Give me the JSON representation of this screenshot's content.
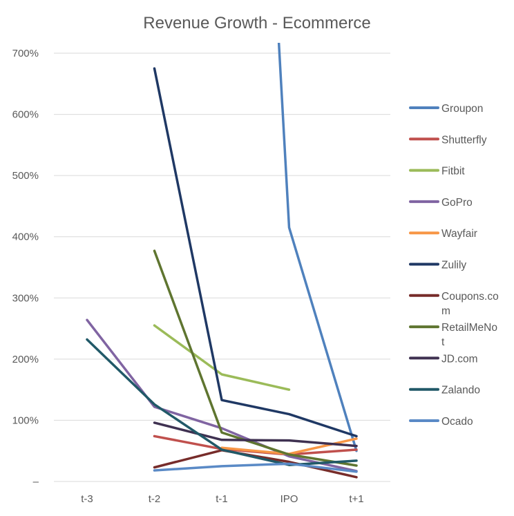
{
  "chart_data": {
    "type": "line",
    "title": "Revenue Growth - Ecommerce",
    "xlabel": "",
    "ylabel": "",
    "categories": [
      "t-3",
      "t-2",
      "t-1",
      "IPO",
      "t+1"
    ],
    "ylim": [
      0,
      700
    ],
    "y_ticks": [
      {
        "value": 0,
        "label": "–"
      },
      {
        "value": 100,
        "label": "100%"
      },
      {
        "value": 200,
        "label": "200%"
      },
      {
        "value": 300,
        "label": "300%"
      },
      {
        "value": 400,
        "label": "400%"
      },
      {
        "value": 500,
        "label": "500%"
      },
      {
        "value": 600,
        "label": "600%"
      },
      {
        "value": 700,
        "label": "700%"
      }
    ],
    "grid": true,
    "legend_position": "right",
    "series": [
      {
        "name": "Groupon",
        "legend_lines": [
          "Groupon"
        ],
        "color": "#4F81BD",
        "values": [
          null,
          null,
          null,
          415,
          50
        ],
        "pre_ipo_value": 740
      },
      {
        "name": "Shutterfly",
        "legend_lines": [
          "Shutterfly"
        ],
        "color": "#C0504D",
        "values": [
          null,
          74,
          53,
          44,
          52
        ]
      },
      {
        "name": "Fitbit",
        "legend_lines": [
          "Fitbit"
        ],
        "color": "#9BBB59",
        "values": [
          null,
          255,
          175,
          150,
          null
        ]
      },
      {
        "name": "GoPro",
        "legend_lines": [
          "GoPro"
        ],
        "color": "#8064A2",
        "values": [
          264,
          122,
          87,
          41,
          17
        ]
      },
      {
        "name": "Wayfair",
        "legend_lines": [
          "Wayfair"
        ],
        "color": "#F79646",
        "values": [
          null,
          null,
          55,
          45,
          70
        ]
      },
      {
        "name": "Zulily",
        "legend_lines": [
          "Zulily"
        ],
        "color": "#1F3864",
        "values": [
          null,
          675,
          133,
          110,
          74
        ]
      },
      {
        "name": "Coupons.com",
        "legend_lines": [
          "Coupons.co",
          "m"
        ],
        "color": "#772C2A",
        "values": [
          null,
          23,
          51,
          32,
          7
        ]
      },
      {
        "name": "RetailMeNot",
        "legend_lines": [
          "RetailMeNo",
          "t"
        ],
        "color": "#5F7530",
        "values": [
          null,
          377,
          80,
          44,
          26
        ]
      },
      {
        "name": "JD.com",
        "legend_lines": [
          "JD.com"
        ],
        "color": "#3F3151",
        "values": [
          null,
          96,
          68,
          67,
          58
        ]
      },
      {
        "name": "Zalando",
        "legend_lines": [
          "Zalando"
        ],
        "color": "#215968",
        "values": [
          232,
          126,
          52,
          27,
          34
        ]
      },
      {
        "name": "Ocado",
        "legend_lines": [
          "Ocado"
        ],
        "color": "#5A8AC6",
        "values": [
          null,
          18,
          25,
          29,
          16
        ]
      }
    ]
  }
}
